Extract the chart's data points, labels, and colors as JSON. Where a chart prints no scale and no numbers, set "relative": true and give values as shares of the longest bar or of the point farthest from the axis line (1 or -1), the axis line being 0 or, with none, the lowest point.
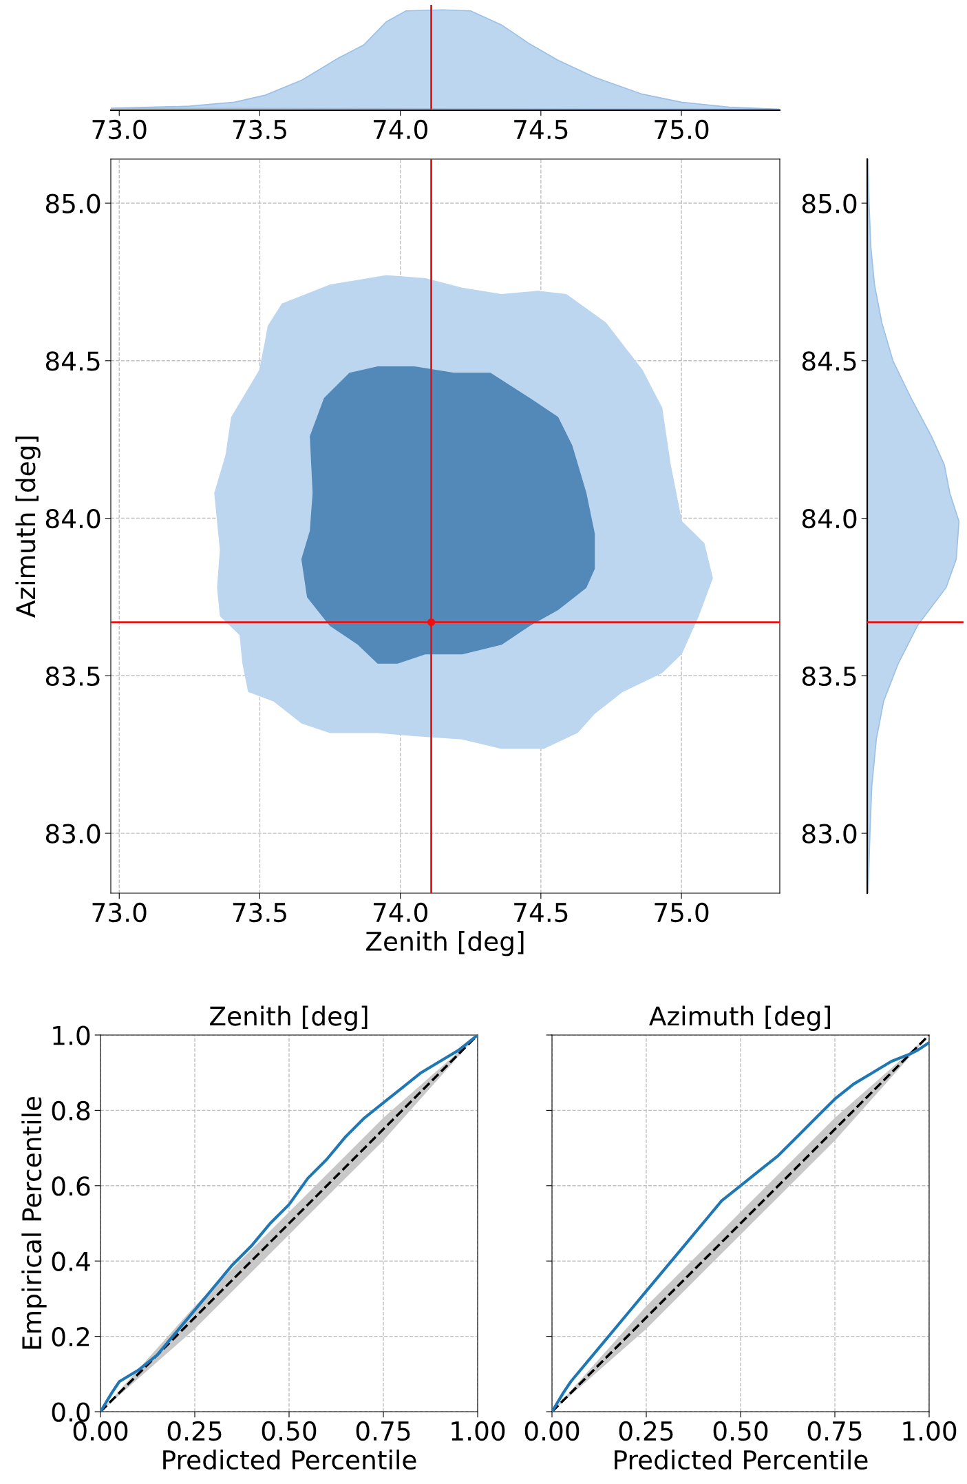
{
  "chart_data": [
    {
      "type": "area",
      "relative": true,
      "tick_labels": "x",
      "xlim": [
        72.97,
        75.35
      ],
      "xticks": [
        {
          "value": 73.0,
          "label": "73.0"
        },
        {
          "value": 73.5,
          "label": "73.5"
        },
        {
          "value": 74.0,
          "label": "74.0"
        },
        {
          "value": 74.5,
          "label": "74.5"
        },
        {
          "value": 75.0,
          "label": "75.0"
        }
      ],
      "series": [
        {
          "color": "#bcd6f0",
          "x": [
            72.97,
            73.25,
            73.41,
            73.52,
            73.65,
            73.78,
            73.87,
            73.95,
            74.02,
            74.15,
            74.25,
            74.36,
            74.46,
            74.56,
            74.69,
            74.86,
            75.0,
            75.17,
            75.35
          ],
          "values": [
            0.02,
            0.04,
            0.08,
            0.15,
            0.3,
            0.52,
            0.65,
            0.88,
            0.99,
            1.0,
            0.99,
            0.85,
            0.66,
            0.5,
            0.33,
            0.16,
            0.08,
            0.03,
            0.01
          ]
        }
      ],
      "ref_lines": [
        {
          "axis": "x",
          "value": 74.11,
          "color": "#ee1111"
        }
      ]
    },
    {
      "type": "area",
      "xlabel": "Zenith [deg]",
      "ylabel": "Azimuth [deg]",
      "grid": true,
      "xlim": [
        72.97,
        75.35
      ],
      "ylim": [
        82.81,
        85.14
      ],
      "xticks": [
        {
          "value": 73.0,
          "label": "73.0"
        },
        {
          "value": 73.5,
          "label": "73.5"
        },
        {
          "value": 74.0,
          "label": "74.0"
        },
        {
          "value": 74.5,
          "label": "74.5"
        },
        {
          "value": 75.0,
          "label": "75.0"
        }
      ],
      "yticks": [
        {
          "value": 83.0,
          "label": "83.0"
        },
        {
          "value": 83.5,
          "label": "83.5"
        },
        {
          "value": 84.0,
          "label": "84.0"
        },
        {
          "value": 84.5,
          "label": "84.5"
        },
        {
          "value": 85.0,
          "label": "85.0"
        }
      ],
      "series": [
        {
          "color": "#bcd6f0",
          "x": [
            73.53,
            73.58,
            73.75,
            73.95,
            74.09,
            74.22,
            74.36,
            74.49,
            74.59,
            74.73,
            74.86,
            74.93,
            74.96,
            75.0,
            75.08,
            75.11,
            75.06,
            75.0,
            74.93,
            74.79,
            74.69,
            74.63,
            74.51,
            74.36,
            74.22,
            74.05,
            73.92,
            73.75,
            73.65,
            73.55,
            73.46,
            73.44,
            73.43,
            73.36,
            73.35,
            73.36,
            73.35,
            73.34,
            73.38,
            73.4,
            73.46,
            73.5,
            73.52
          ],
          "values": [
            84.61,
            84.68,
            84.74,
            84.77,
            84.76,
            84.73,
            84.71,
            84.72,
            84.71,
            84.62,
            84.47,
            84.35,
            84.17,
            83.99,
            83.92,
            83.81,
            83.69,
            83.57,
            83.51,
            83.45,
            83.38,
            83.32,
            83.27,
            83.27,
            83.3,
            83.31,
            83.32,
            83.32,
            83.35,
            83.42,
            83.45,
            83.54,
            83.63,
            83.69,
            83.78,
            83.9,
            83.99,
            84.08,
            84.2,
            84.32,
            84.41,
            84.47,
            84.56
          ]
        },
        {
          "color": "#5289b8",
          "x": [
            73.73,
            73.82,
            73.92,
            74.05,
            74.19,
            74.32,
            74.46,
            74.56,
            74.61,
            74.66,
            74.69,
            74.69,
            74.66,
            74.56,
            74.46,
            74.36,
            74.22,
            74.09,
            73.99,
            73.92,
            73.85,
            73.75,
            73.67,
            73.65,
            73.68,
            73.69,
            73.68
          ],
          "values": [
            84.38,
            84.46,
            84.48,
            84.48,
            84.46,
            84.46,
            84.38,
            84.32,
            84.23,
            84.08,
            83.95,
            83.84,
            83.78,
            83.71,
            83.66,
            83.6,
            83.57,
            83.57,
            83.54,
            83.54,
            83.6,
            83.66,
            83.75,
            83.87,
            83.96,
            84.08,
            84.26
          ]
        },
        {
          "type": "scatter",
          "color": "#ee1111",
          "marker": "circle",
          "x": [
            74.11
          ],
          "values": [
            83.67
          ]
        }
      ],
      "ref_lines": [
        {
          "axis": "x",
          "value": 74.11,
          "color": "#ee1111"
        },
        {
          "axis": "y",
          "value": 83.67,
          "color": "#ee1111"
        }
      ]
    },
    {
      "type": "area",
      "relative": true,
      "orientation": "horizontal",
      "tick_labels": "y",
      "ylim": [
        82.81,
        85.14
      ],
      "yticks": [
        {
          "value": 83.0,
          "label": "83.0"
        },
        {
          "value": 83.5,
          "label": "83.5"
        },
        {
          "value": 84.0,
          "label": "84.0"
        },
        {
          "value": 84.5,
          "label": "84.5"
        },
        {
          "value": 85.0,
          "label": "85.0"
        }
      ],
      "series": [
        {
          "color": "#bcd6f0",
          "x": [
            85.14,
            85.0,
            84.86,
            84.74,
            84.62,
            84.5,
            84.38,
            84.26,
            84.17,
            84.08,
            83.99,
            83.87,
            83.78,
            83.66,
            83.54,
            83.42,
            83.3,
            83.15,
            83.0,
            82.81
          ],
          "values": [
            0.01,
            0.02,
            0.04,
            0.08,
            0.16,
            0.28,
            0.48,
            0.7,
            0.84,
            0.9,
            1.0,
            0.97,
            0.86,
            0.55,
            0.34,
            0.18,
            0.1,
            0.05,
            0.03,
            0.01
          ]
        }
      ],
      "ref_lines": [
        {
          "axis": "y",
          "value": 83.67,
          "color": "#ee1111"
        }
      ]
    },
    {
      "type": "line",
      "title": "Zenith [deg]",
      "xlabel": "Predicted Percentile",
      "ylabel": "Empirical Percentile",
      "grid": true,
      "xlim": [
        0,
        1
      ],
      "ylim": [
        0,
        1
      ],
      "xticks": [
        {
          "value": 0,
          "label": "0.00"
        },
        {
          "value": 0.25,
          "label": "0.25"
        },
        {
          "value": 0.5,
          "label": "0.50"
        },
        {
          "value": 0.75,
          "label": "0.75"
        },
        {
          "value": 1,
          "label": "1.00"
        }
      ],
      "yticks": [
        {
          "value": 0,
          "label": "0.0"
        },
        {
          "value": 0.2,
          "label": "0.2"
        },
        {
          "value": 0.4,
          "label": "0.4"
        },
        {
          "value": 0.6,
          "label": "0.6"
        },
        {
          "value": 0.8,
          "label": "0.8"
        },
        {
          "value": 1,
          "label": "1.0"
        }
      ],
      "series": [
        {
          "color": "#000000",
          "line_style": "dashed",
          "x": [
            0,
            0.25,
            0.5,
            0.75,
            1
          ],
          "values": [
            0,
            0.25,
            0.5,
            0.75,
            1
          ],
          "lower": [
            0,
            0.22,
            0.47,
            0.72,
            1
          ],
          "upper": [
            0,
            0.28,
            0.53,
            0.78,
            1
          ]
        },
        {
          "color": "#1f77b4",
          "line_style": "solid",
          "x": [
            0,
            0.03,
            0.05,
            0.1,
            0.15,
            0.2,
            0.25,
            0.3,
            0.35,
            0.4,
            0.45,
            0.5,
            0.55,
            0.6,
            0.65,
            0.7,
            0.75,
            0.8,
            0.85,
            0.9,
            0.95,
            1
          ],
          "values": [
            0,
            0.05,
            0.08,
            0.11,
            0.15,
            0.21,
            0.27,
            0.33,
            0.39,
            0.44,
            0.5,
            0.55,
            0.62,
            0.67,
            0.73,
            0.78,
            0.82,
            0.86,
            0.9,
            0.93,
            0.96,
            1
          ]
        }
      ]
    },
    {
      "type": "line",
      "title": "Azimuth [deg]",
      "xlabel": "Predicted Percentile",
      "grid": true,
      "tick_labels": "x",
      "xlim": [
        0,
        1
      ],
      "ylim": [
        0,
        1
      ],
      "xticks": [
        {
          "value": 0,
          "label": "0.00"
        },
        {
          "value": 0.25,
          "label": "0.25"
        },
        {
          "value": 0.5,
          "label": "0.50"
        },
        {
          "value": 0.75,
          "label": "0.75"
        },
        {
          "value": 1,
          "label": "1.00"
        }
      ],
      "yticks": [
        {
          "value": 0,
          "label": null
        },
        {
          "value": 0.2,
          "label": null
        },
        {
          "value": 0.4,
          "label": null
        },
        {
          "value": 0.6,
          "label": null
        },
        {
          "value": 0.8,
          "label": null
        },
        {
          "value": 1,
          "label": null
        }
      ],
      "series": [
        {
          "color": "#000000",
          "line_style": "dashed",
          "x": [
            0,
            0.25,
            0.5,
            0.75,
            1
          ],
          "values": [
            0,
            0.25,
            0.5,
            0.75,
            1
          ],
          "lower": [
            0,
            0.22,
            0.47,
            0.72,
            1
          ],
          "upper": [
            0,
            0.28,
            0.53,
            0.78,
            1
          ]
        },
        {
          "color": "#1f77b4",
          "line_style": "solid",
          "x": [
            0,
            0.03,
            0.05,
            0.1,
            0.15,
            0.2,
            0.25,
            0.3,
            0.35,
            0.4,
            0.45,
            0.5,
            0.55,
            0.6,
            0.65,
            0.7,
            0.75,
            0.8,
            0.85,
            0.9,
            0.95,
            0.97,
            1
          ],
          "values": [
            0,
            0.05,
            0.08,
            0.14,
            0.2,
            0.26,
            0.32,
            0.38,
            0.44,
            0.5,
            0.56,
            0.6,
            0.64,
            0.68,
            0.73,
            0.78,
            0.83,
            0.87,
            0.9,
            0.93,
            0.95,
            0.96,
            0.98
          ]
        }
      ]
    }
  ]
}
